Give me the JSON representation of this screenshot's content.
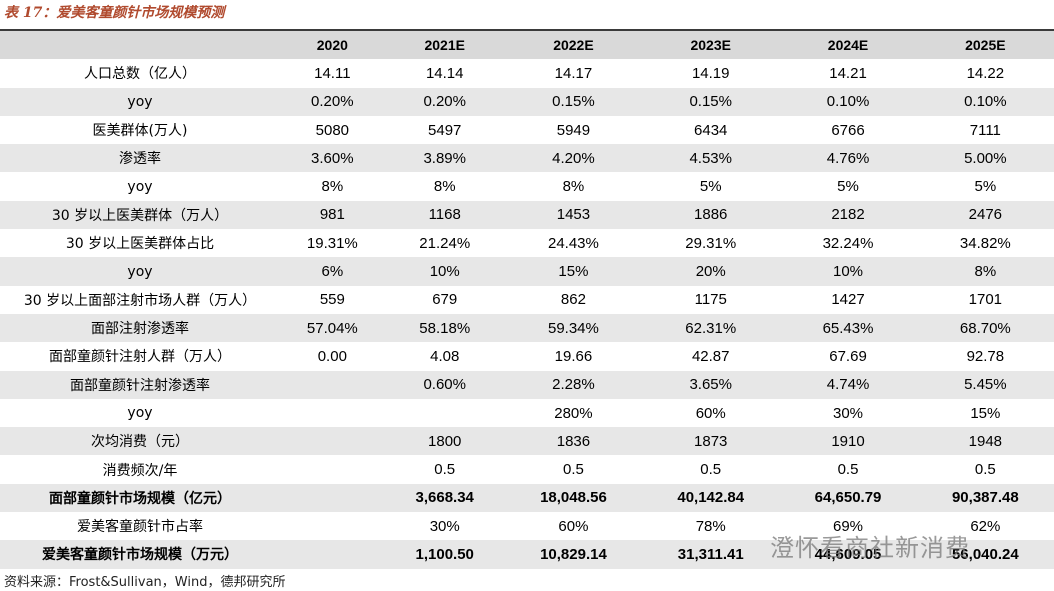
{
  "header": {
    "title": "表 17：爱美客童颜针市场规模预测"
  },
  "table": {
    "columns": [
      "2020",
      "2021E",
      "2022E",
      "2023E",
      "2024E",
      "2025E"
    ],
    "rows": [
      [
        "人口总数（亿人）",
        "14.11",
        "14.14",
        "14.17",
        "14.19",
        "14.21",
        "14.22"
      ],
      [
        "yoy",
        "0.20%",
        "0.20%",
        "0.15%",
        "0.15%",
        "0.10%",
        "0.10%"
      ],
      [
        "医美群体(万人)",
        "5080",
        "5497",
        "5949",
        "6434",
        "6766",
        "7111"
      ],
      [
        "渗透率",
        "3.60%",
        "3.89%",
        "4.20%",
        "4.53%",
        "4.76%",
        "5.00%"
      ],
      [
        "yoy",
        "8%",
        "8%",
        "8%",
        "5%",
        "5%",
        "5%"
      ],
      [
        "30 岁以上医美群体（万人）",
        "981",
        "1168",
        "1453",
        "1886",
        "2182",
        "2476"
      ],
      [
        "30 岁以上医美群体占比",
        "19.31%",
        "21.24%",
        "24.43%",
        "29.31%",
        "32.24%",
        "34.82%"
      ],
      [
        "yoy",
        "6%",
        "10%",
        "15%",
        "20%",
        "10%",
        "8%"
      ],
      [
        "30 岁以上面部注射市场人群（万人）",
        "559",
        "679",
        "862",
        "1175",
        "1427",
        "1701"
      ],
      [
        "面部注射渗透率",
        "57.04%",
        "58.18%",
        "59.34%",
        "62.31%",
        "65.43%",
        "68.70%"
      ],
      [
        "面部童颜针注射人群（万人）",
        "0.00",
        "4.08",
        "19.66",
        "42.87",
        "67.69",
        "92.78"
      ],
      [
        "面部童颜针注射渗透率",
        null,
        "0.60%",
        "2.28%",
        "3.65%",
        "4.74%",
        "5.45%"
      ],
      [
        "yoy",
        null,
        null,
        "280%",
        "60%",
        "30%",
        "15%"
      ],
      [
        "次均消费（元）",
        null,
        "1800",
        "1836",
        "1873",
        "1910",
        "1948"
      ],
      [
        "消费频次/年",
        null,
        "0.5",
        "0.5",
        "0.5",
        "0.5",
        "0.5"
      ],
      [
        "面部童颜针市场规模（亿元）",
        null,
        "3,668.34",
        "18,048.56",
        "40,142.84",
        "64,650.79",
        "90,387.48"
      ],
      [
        "爱美客童颜针市占率",
        null,
        "30%",
        "60%",
        "78%",
        "69%",
        "62%"
      ],
      [
        "爱美客童颜针市场规模（万元）",
        null,
        "1,100.50",
        "10,829.14",
        "31,311.41",
        "44,609.05",
        "56,040.24"
      ]
    ]
  },
  "source": "资料来源：Frost&Sullivan，Wind，德邦研究所",
  "watermark": "澄怀看商社新消费"
}
